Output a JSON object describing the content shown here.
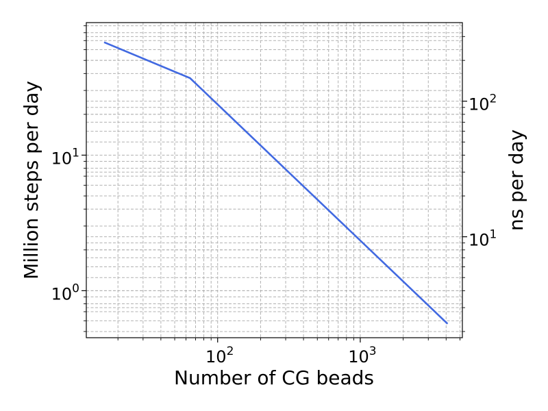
{
  "chart_data": {
    "type": "line",
    "title": "",
    "xlabel": "Number of CG beads",
    "ylabel": "Million steps per day",
    "y2label": "ns per day",
    "xscale": "log",
    "yscale": "log",
    "y2scale": "log",
    "xlim": [
      12,
      5200
    ],
    "ylim": [
      0.45,
      95
    ],
    "y2lim": [
      1.8,
      380
    ],
    "grid": true,
    "grid_minor": true,
    "legend": "none",
    "line_color": "#4169e1",
    "series": [
      {
        "x": [
          16,
          64,
          4096
        ],
        "y": [
          68,
          37,
          0.57
        ]
      }
    ],
    "x_ticks": [
      {
        "base": "10",
        "exp": "2",
        "value": 100
      },
      {
        "base": "10",
        "exp": "3",
        "value": 1000
      }
    ],
    "y_ticks": [
      {
        "base": "10",
        "exp": "0",
        "value": 1
      },
      {
        "base": "10",
        "exp": "1",
        "value": 10
      }
    ],
    "y2_ticks": [
      {
        "base": "10",
        "exp": "1",
        "value": 10
      },
      {
        "base": "10",
        "exp": "2",
        "value": 100
      }
    ]
  }
}
